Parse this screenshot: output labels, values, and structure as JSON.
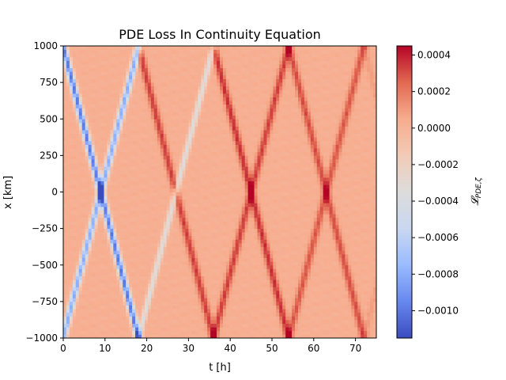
{
  "chart_data": {
    "type": "heatmap",
    "title": "PDE Loss In Continuity Equation",
    "xlabel": "t [h]",
    "ylabel": "x [km]",
    "colorbar_label": "𝓛PDE,ζ",
    "colorbar_label_main": "𝓛",
    "colorbar_label_sub": "PDE,ζ",
    "xlim": [
      0,
      75
    ],
    "ylim": [
      -1000,
      1000
    ],
    "xticks": [
      0,
      10,
      20,
      30,
      40,
      50,
      60,
      70
    ],
    "xtick_labels": [
      "0",
      "10",
      "20",
      "30",
      "40",
      "50",
      "60",
      "70"
    ],
    "yticks": [
      -1000,
      -750,
      -500,
      -250,
      0,
      250,
      500,
      750,
      1000
    ],
    "ytick_labels": [
      "−1000",
      "−750",
      "−500",
      "−250",
      "0",
      "250",
      "500",
      "750",
      "1000"
    ],
    "colormap": "coolwarm",
    "color_range": [
      -0.00115,
      0.00045
    ],
    "colorbar_ticks": [
      -0.001,
      -0.0008,
      -0.0006,
      -0.0004,
      -0.0002,
      0,
      0.0002,
      0.0004
    ],
    "colorbar_tick_labels": [
      "−0.0010",
      "−0.0008",
      "−0.0006",
      "−0.0004",
      "−0.0002",
      "0.0000",
      "0.0002",
      "0.0004"
    ],
    "colormap_stops": [
      "#3b4cc0",
      "#6788ee",
      "#9abbff",
      "#c9d7f0",
      "#dddcdc",
      "#f2cbb7",
      "#f7ac8e",
      "#e26952",
      "#b40426"
    ],
    "field_description": "diamond lattice of characteristic lines; background value ~0.00003",
    "grid_t": 100,
    "grid_x": 80,
    "wave_speed_km_per_h": 111,
    "wave_origins_h": [
      -9,
      9,
      27,
      45,
      63,
      81
    ],
    "negative_lines": [
      {
        "t0": 9,
        "slope": -1,
        "amp": -0.0011,
        "width_h": 0.55
      },
      {
        "t0": 9,
        "slope": 1,
        "amp": -0.0009,
        "width_h": 0.55
      },
      {
        "t0": 27,
        "slope": 1,
        "amp": -0.00045,
        "width_h": 0.5
      }
    ],
    "positive_lines": [
      {
        "t0": 27,
        "slope": -1,
        "amp": 0.00025,
        "width_h": 0.6
      },
      {
        "t0": 45,
        "slope": -1,
        "amp": 0.00028,
        "width_h": 0.6
      },
      {
        "t0": 45,
        "slope": 1,
        "amp": 0.00025,
        "width_h": 0.6
      },
      {
        "t0": 63,
        "slope": 1,
        "amp": 0.0002,
        "width_h": 0.6
      },
      {
        "t0": 63,
        "slope": -1,
        "amp": 0.00022,
        "width_h": 0.6
      }
    ]
  }
}
